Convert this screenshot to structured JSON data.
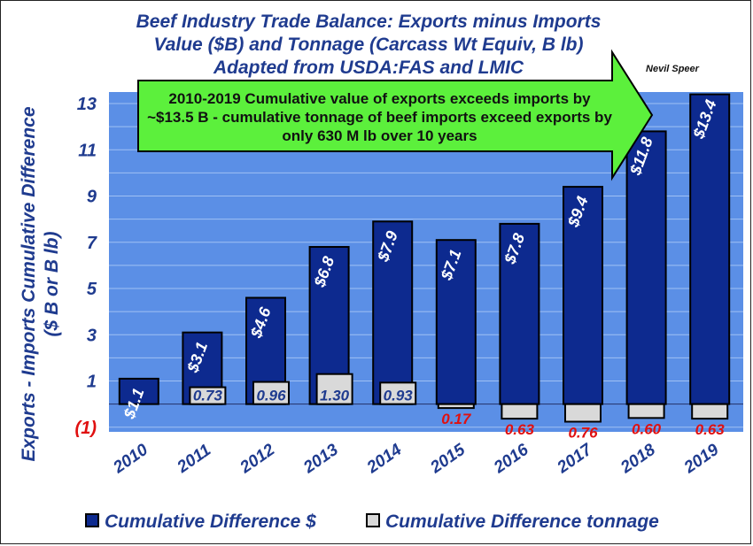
{
  "chart_data": {
    "type": "bar",
    "title": [
      "Beef Industry Trade Balance:  Exports minus Imports",
      "Value ($B) and Tonnage (Carcass Wt Equiv, B lb)",
      "Adapted from USDA:FAS and LMIC"
    ],
    "credit": "Nevil Speer",
    "ylabel": [
      "Exports - Imports Cumulative Difference",
      "($ B or B lb)"
    ],
    "ylim": [
      -1.2,
      13.5
    ],
    "yticks": [
      {
        "value": 13,
        "label": "13"
      },
      {
        "value": 11,
        "label": "11"
      },
      {
        "value": 9,
        "label": "9"
      },
      {
        "value": 7,
        "label": "7"
      },
      {
        "value": 5,
        "label": "5"
      },
      {
        "value": 3,
        "label": "3"
      },
      {
        "value": 1,
        "label": "1"
      },
      {
        "value": -1,
        "label": "(1)"
      }
    ],
    "categories": [
      "2010",
      "2011",
      "2012",
      "2013",
      "2014",
      "2015",
      "2016",
      "2017",
      "2018",
      "2019"
    ],
    "series": [
      {
        "name": "Cumulative Difference $",
        "color": "#0d2a8f",
        "values": [
          1.1,
          3.1,
          4.6,
          6.8,
          7.9,
          7.1,
          7.8,
          9.4,
          11.8,
          13.4
        ],
        "labels": [
          "$1.1",
          "$3.1",
          "$4.6",
          "$6.8",
          "$7.9",
          "$7.1",
          "$7.8",
          "$9.4",
          "$11.8",
          "$13.4"
        ]
      },
      {
        "name": "Cumulative Difference tonnage",
        "color": "#d9d9d9",
        "values": [
          0,
          0.73,
          0.96,
          1.3,
          0.93,
          -0.17,
          -0.63,
          -0.76,
          -0.6,
          -0.63
        ],
        "labels": [
          "",
          "0.73",
          "0.96",
          "1.30",
          "0.93",
          "0.17",
          "0.63",
          "0.76",
          "0.60",
          "0.63"
        ]
      }
    ],
    "annotation": [
      "2010-2019 Cumulative value of exports exceeds imports by",
      "~$13.5 B - cumulative tonnage of beef imports exceed exports by",
      "only 630 M lb over 10 years"
    ],
    "colors": {
      "plot_bg": "#5b8fe6",
      "grid": "#9fc0f4",
      "annotation_fill": "#5cf03c",
      "positive_text": "#1f3b8f",
      "negative_text": "#e01010"
    },
    "grid": true,
    "legend": "bottom"
  }
}
